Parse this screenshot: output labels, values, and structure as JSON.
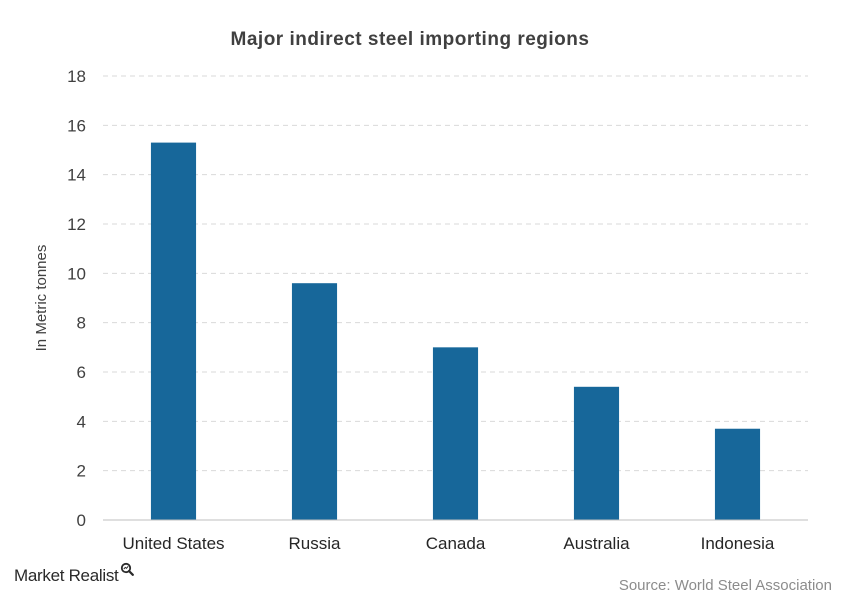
{
  "chart_data": {
    "type": "bar",
    "title": "Major indirect steel importing regions",
    "xlabel": "",
    "ylabel": "In Metric tonnes",
    "categories": [
      "United States",
      "Russia",
      "Canada",
      "Australia",
      "Indonesia"
    ],
    "values": [
      15.3,
      9.6,
      7.0,
      5.4,
      3.7
    ],
    "ylim": [
      0,
      18
    ],
    "yticks": [
      0,
      2,
      4,
      6,
      8,
      10,
      12,
      14,
      16,
      18
    ],
    "grid": true,
    "legend": "none",
    "bar_color": "#17679a"
  },
  "footer": {
    "brand": "Market Realist",
    "brand_icon": "magnifier-icon",
    "source": "Source: World Steel Association"
  }
}
